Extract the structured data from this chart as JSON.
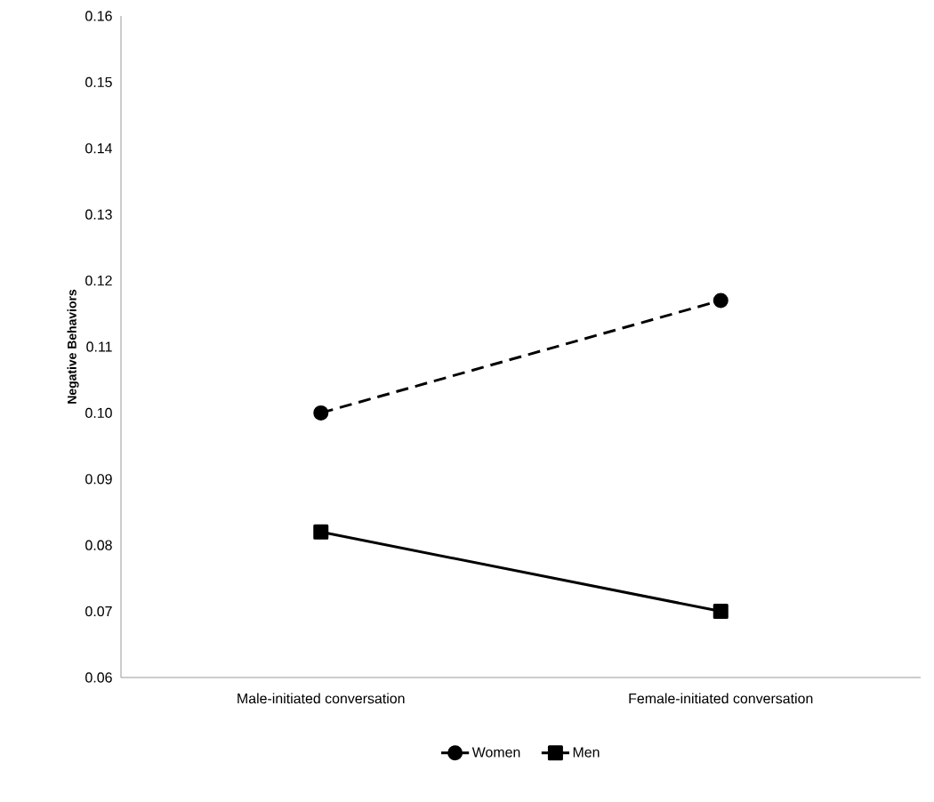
{
  "chart_data": {
    "type": "line",
    "ylabel": "Negative Behaviors",
    "categories": [
      "Male-initiated conversation",
      "Female-initiated conversation"
    ],
    "series": [
      {
        "name": "Women",
        "color": "#000000",
        "values": [
          0.1,
          0.117
        ],
        "marker": "circle",
        "line_style": "dashed"
      },
      {
        "name": "Men",
        "color": "#000000",
        "values": [
          0.082,
          0.07
        ],
        "marker": "square",
        "line_style": "solid"
      }
    ],
    "ylim": [
      0.06,
      0.16
    ],
    "yticks": [
      {
        "value": 0.06,
        "label": "0.06"
      },
      {
        "value": 0.07,
        "label": "0.07"
      },
      {
        "value": 0.08,
        "label": "0.08"
      },
      {
        "value": 0.09,
        "label": "0.09"
      },
      {
        "value": 0.1,
        "label": "0.10"
      },
      {
        "value": 0.11,
        "label": "0.11"
      },
      {
        "value": 0.12,
        "label": "0.12"
      },
      {
        "value": 0.13,
        "label": "0.13"
      },
      {
        "value": 0.14,
        "label": "0.14"
      },
      {
        "value": 0.15,
        "label": "0.15"
      },
      {
        "value": 0.16,
        "label": "0.16"
      }
    ],
    "grid": false,
    "legend": "bottom"
  }
}
